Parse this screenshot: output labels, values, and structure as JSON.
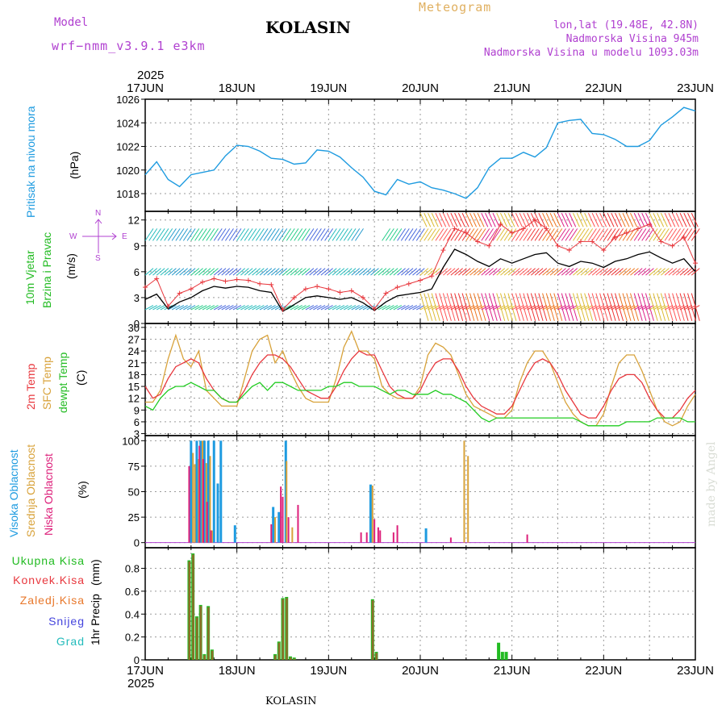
{
  "header": {
    "model_label": "Model",
    "model_name": "wrf−nmm_v3.9.1 e3km",
    "station": "KOLASIN",
    "meteogram": "Meteogram",
    "coords": "lon,lat (19.48E, 42.8N)",
    "elevation": "Nadmorska Visina 945m",
    "model_elevation": "Nadmorska Visina u modelu 1093.03m",
    "year_top": "2025",
    "year_bottom": "2025",
    "footer_station": "KOLASIN",
    "credit": "made by Angel"
  },
  "colors": {
    "pressure": "#1e9be0",
    "temp2m": "#e8373d",
    "sfc": "#d8a23a",
    "dew": "#22cc22",
    "cloud_high": "#1e9be0",
    "cloud_mid": "#d8a23a",
    "cloud_low": "#dd1f7a",
    "total": "#22bb22",
    "convective": "#e8373d",
    "frozen": "#e8772a",
    "snow": "#4444dd",
    "graupel": "#22bbbb",
    "wind_speed": "#000000",
    "gust": "#e8373d",
    "wind_dir_label": "#b040d0"
  },
  "chart_data": [
    {
      "type": "line",
      "id": "pressure",
      "ylabel_main": "Pritisak na nivou mora",
      "ylabel_unit": "(hPa)",
      "ylim": [
        1016.5,
        1026
      ],
      "yticks": [
        "1018",
        "1020",
        "1022",
        "1024",
        "1026"
      ],
      "x_hours": [
        0,
        3,
        6,
        9,
        12,
        15,
        18,
        21,
        24,
        27,
        30,
        33,
        36,
        39,
        42,
        45,
        48,
        51,
        54,
        57,
        60,
        63,
        66,
        69,
        72,
        75,
        78,
        81,
        84,
        87,
        90,
        93,
        96,
        99,
        102,
        105,
        108,
        111,
        114,
        117,
        120,
        123,
        126,
        129,
        132,
        135,
        138,
        141,
        144
      ],
      "values": [
        1019.6,
        1020.7,
        1019.2,
        1018.6,
        1019.6,
        1019.8,
        1020.0,
        1021.2,
        1022.1,
        1022.0,
        1021.6,
        1021.0,
        1020.9,
        1020.5,
        1020.6,
        1021.7,
        1021.6,
        1021.1,
        1020.2,
        1019.4,
        1018.2,
        1017.9,
        1019.2,
        1018.8,
        1019.0,
        1018.5,
        1018.3,
        1018.0,
        1017.6,
        1018.5,
        1020.2,
        1021.0,
        1021.0,
        1021.5,
        1021.1,
        1021.9,
        1024.0,
        1024.2,
        1024.3,
        1023.1,
        1023.0,
        1022.6,
        1022.0,
        1022.0,
        1022.5,
        1023.8,
        1024.5,
        1025.3,
        1025.0
      ]
    },
    {
      "type": "line",
      "id": "wind",
      "ylabel_main": "10m Vjetar",
      "ylabel_sub": "Brzina i Pravac",
      "ylabel_unit": "(m/s)",
      "ylim": [
        0,
        13
      ],
      "yticks": [
        "0",
        "3",
        "6",
        "9",
        "12"
      ],
      "compass": {
        "n": "N",
        "s": "S",
        "w": "W",
        "e": "E"
      },
      "x_hours": [
        0,
        3,
        6,
        9,
        12,
        15,
        18,
        21,
        24,
        27,
        30,
        33,
        36,
        39,
        42,
        45,
        48,
        51,
        54,
        57,
        60,
        63,
        66,
        69,
        72,
        75,
        78,
        81,
        84,
        87,
        90,
        93,
        96,
        99,
        102,
        105,
        108,
        111,
        114,
        117,
        120,
        123,
        126,
        129,
        132,
        135,
        138,
        141,
        144
      ],
      "series": [
        {
          "name": "speed",
          "values": [
            2.8,
            3.4,
            1.7,
            2.5,
            3.0,
            3.8,
            4.3,
            4.1,
            4.3,
            4.2,
            3.8,
            3.6,
            1.4,
            2.2,
            3.0,
            3.2,
            3.0,
            2.8,
            3.0,
            2.4,
            1.5,
            2.5,
            3.2,
            3.4,
            3.6,
            4.0,
            6.5,
            8.6,
            8.0,
            7.2,
            6.6,
            7.5,
            7.0,
            7.5,
            8.0,
            8.2,
            7.0,
            6.6,
            7.2,
            7.0,
            6.5,
            7.2,
            7.5,
            8.0,
            8.3,
            7.6,
            7.0,
            7.5,
            6.0
          ]
        },
        {
          "name": "gust",
          "values": [
            4.2,
            5.2,
            2.0,
            3.5,
            4.0,
            4.8,
            5.2,
            4.9,
            5.1,
            5.0,
            4.6,
            4.5,
            1.6,
            3.0,
            4.0,
            4.3,
            4.0,
            3.6,
            3.8,
            3.0,
            1.7,
            3.5,
            4.2,
            4.6,
            5.0,
            5.5,
            8.5,
            11.0,
            10.5,
            9.5,
            9.0,
            11.5,
            10.5,
            11.0,
            12.0,
            11.0,
            9.0,
            8.5,
            9.5,
            9.5,
            8.5,
            10.0,
            10.5,
            11.0,
            11.5,
            9.5,
            9.0,
            10.0,
            7.0
          ]
        }
      ]
    },
    {
      "type": "line",
      "id": "temperature",
      "ylabel_t2m": "2m Temp",
      "ylabel_sfc": "SFC Temp",
      "ylabel_dew": "dewpt Temp",
      "ylabel_unit": "(C)",
      "ylim": [
        2.5,
        31
      ],
      "yticks": [
        "3",
        "6",
        "9",
        "12",
        "15",
        "18",
        "21",
        "24",
        "27",
        "30"
      ],
      "x_hours": [
        0,
        2,
        4,
        6,
        8,
        10,
        12,
        14,
        16,
        18,
        20,
        22,
        24,
        26,
        28,
        30,
        32,
        34,
        36,
        38,
        40,
        42,
        44,
        46,
        48,
        50,
        52,
        54,
        56,
        58,
        60,
        62,
        64,
        66,
        68,
        70,
        72,
        74,
        76,
        78,
        80,
        82,
        84,
        86,
        88,
        90,
        92,
        94,
        96,
        98,
        100,
        102,
        104,
        106,
        108,
        110,
        112,
        114,
        116,
        118,
        120,
        122,
        124,
        126,
        128,
        130,
        132,
        134,
        136,
        138,
        140,
        142,
        144
      ],
      "series": [
        {
          "name": "2m",
          "values": [
            15,
            12,
            13,
            17,
            20,
            21,
            22,
            21,
            17,
            14,
            12,
            11,
            11,
            14,
            18,
            21,
            23,
            23,
            22,
            20,
            17,
            14,
            13,
            12,
            12,
            15,
            19,
            22,
            24,
            23,
            23,
            19,
            15,
            13,
            12,
            12,
            14,
            18,
            21,
            22,
            22,
            19,
            15,
            12,
            10,
            9,
            8,
            8,
            10,
            14,
            18,
            21,
            22,
            21,
            18,
            14,
            11,
            8,
            7,
            7,
            10,
            14,
            17,
            18,
            18,
            16,
            12,
            9,
            7,
            7,
            9,
            12,
            14
          ]
        },
        {
          "name": "SFC",
          "values": [
            11,
            11,
            14,
            22,
            28,
            22,
            20,
            24,
            14,
            12,
            10,
            10,
            10,
            17,
            24,
            27,
            28,
            21,
            24,
            19,
            15,
            12,
            11,
            11,
            11,
            17,
            25,
            29,
            24,
            24,
            22,
            15,
            13,
            12,
            12,
            12,
            15,
            23,
            26,
            25,
            23,
            18,
            13,
            10,
            9,
            8,
            7,
            7,
            9,
            16,
            21,
            24,
            24,
            21,
            16,
            11,
            8,
            6,
            5,
            5,
            8,
            15,
            21,
            23,
            23,
            19,
            14,
            9,
            6,
            5,
            6,
            10,
            13
          ]
        },
        {
          "name": "dew",
          "values": [
            10,
            9,
            12,
            14,
            15,
            15,
            16,
            15,
            14,
            14,
            12,
            11,
            11,
            13,
            15,
            16,
            14,
            16,
            16,
            15,
            14,
            14,
            14,
            14,
            15,
            15,
            16,
            16,
            15,
            15,
            15,
            14,
            13,
            14,
            14,
            13,
            13,
            13,
            14,
            13,
            13,
            12,
            11,
            9,
            7,
            6,
            7,
            7,
            7,
            7,
            7,
            7,
            7,
            7,
            7,
            7,
            7,
            6,
            5,
            5,
            5,
            5,
            5,
            6,
            6,
            6,
            6,
            7,
            7,
            7,
            7,
            6,
            6
          ]
        }
      ]
    },
    {
      "type": "bar",
      "id": "clouds",
      "ylabel_high": "Visoka Oblacnost",
      "ylabel_mid": "Srednja Oblacnost",
      "ylabel_low": "Niska Oblacnost",
      "ylabel_unit": "(%)",
      "ylim": [
        -5,
        105
      ],
      "yticks": [
        "0",
        "25",
        "50",
        "75",
        "100"
      ],
      "series": [
        {
          "name": "high",
          "points": [
            [
              12,
              100
            ],
            [
              13.5,
              100
            ],
            [
              14.5,
              100
            ],
            [
              15.5,
              100
            ],
            [
              16.5,
              100
            ],
            [
              18,
              100
            ],
            [
              19,
              58
            ],
            [
              19.8,
              100
            ],
            [
              23.5,
              17
            ],
            [
              33.5,
              35
            ],
            [
              35,
              30
            ],
            [
              36.8,
              100
            ],
            [
              59,
              57
            ],
            [
              73.5,
              14
            ]
          ]
        },
        {
          "name": "mid",
          "points": [
            [
              12.5,
              88
            ],
            [
              13,
              77
            ],
            [
              14,
              82
            ],
            [
              15,
              100
            ],
            [
              16,
              78
            ],
            [
              17,
              85
            ],
            [
              17.5,
              12
            ],
            [
              34,
              25
            ],
            [
              37,
              80
            ],
            [
              38.5,
              15
            ],
            [
              59.5,
              56
            ],
            [
              83.5,
              100
            ],
            [
              84.5,
              85
            ]
          ]
        },
        {
          "name": "low",
          "points": [
            [
              11.5,
              75
            ],
            [
              14.2,
              95
            ],
            [
              15.2,
              82
            ],
            [
              16.2,
              40
            ],
            [
              17.2,
              12
            ],
            [
              33,
              18
            ],
            [
              35.5,
              55
            ],
            [
              36,
              45
            ],
            [
              37.5,
              25
            ],
            [
              40,
              37
            ],
            [
              56.5,
              10
            ],
            [
              58,
              10
            ],
            [
              60,
              23
            ],
            [
              61,
              15
            ],
            [
              61.5,
              12
            ],
            [
              65,
              10
            ],
            [
              66,
              17
            ],
            [
              80,
              5
            ],
            [
              100,
              8
            ]
          ]
        }
      ]
    },
    {
      "type": "bar",
      "id": "precip",
      "ylabel_main": "1hr Precip",
      "ylabel_unit": "(mm)",
      "ylim": [
        0,
        0.98
      ],
      "yticks": [
        "0",
        "0.2",
        "0.4",
        "0.6",
        "0.8"
      ],
      "legend": [
        "Ukupna  Kisa",
        "Konvek.Kisa",
        "Zaledj.Kisa",
        "Snijeg",
        "Grad"
      ],
      "series": [
        {
          "name": "total",
          "points": [
            [
              11.5,
              0.87
            ],
            [
              12.5,
              0.93
            ],
            [
              13.5,
              0.38
            ],
            [
              14.5,
              0.48
            ],
            [
              15.5,
              0.05
            ],
            [
              16.5,
              0.47
            ],
            [
              17.5,
              0.09
            ],
            [
              34,
              0.05
            ],
            [
              35,
              0.16
            ],
            [
              36,
              0.54
            ],
            [
              37,
              0.55
            ],
            [
              38,
              0.03
            ],
            [
              39,
              0.02
            ],
            [
              59.5,
              0.53
            ],
            [
              60.5,
              0.07
            ],
            [
              92.5,
              0.15
            ],
            [
              93.5,
              0.07
            ],
            [
              94.5,
              0.07
            ]
          ]
        },
        {
          "name": "convective",
          "points": [
            [
              11.5,
              0.86
            ],
            [
              12.5,
              0.92
            ],
            [
              13.5,
              0.37
            ],
            [
              14.5,
              0.47
            ],
            [
              15.5,
              0.04
            ],
            [
              16.5,
              0.46
            ],
            [
              17.5,
              0.08
            ],
            [
              34,
              0.04
            ],
            [
              35,
              0.15
            ],
            [
              36,
              0.53
            ],
            [
              37,
              0.54
            ],
            [
              38,
              0.02
            ],
            [
              39,
              0.01
            ],
            [
              59.5,
              0.52
            ],
            [
              60.5,
              0.06
            ]
          ]
        }
      ]
    }
  ],
  "x_axis": {
    "top_labels": [
      "17JUN",
      "18JUN",
      "19JUN",
      "20JUN",
      "21JUN",
      "22JUN",
      "23JUN"
    ],
    "bottom_labels": [
      "17JUN",
      "18JUN",
      "19JUN",
      "20JUN",
      "21JUN",
      "22JUN",
      "23JUN"
    ],
    "range_hours": [
      0,
      144
    ]
  }
}
